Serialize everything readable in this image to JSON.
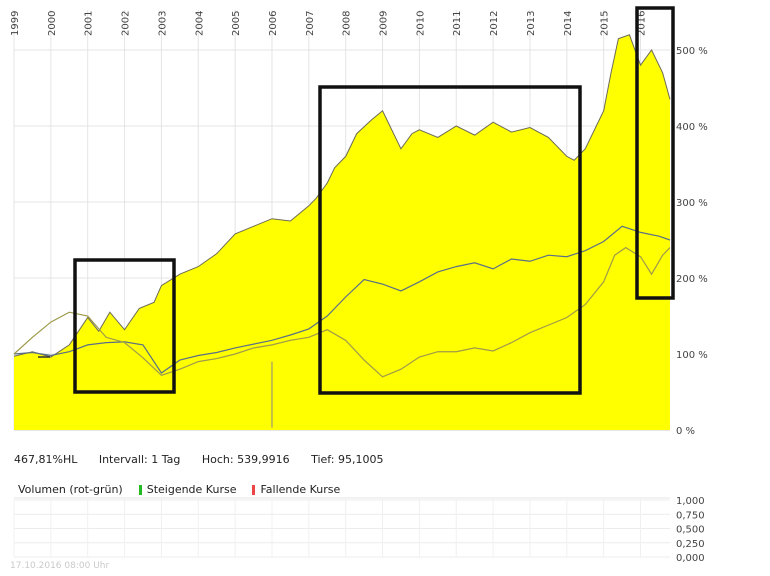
{
  "chart_data": {
    "type": "area",
    "x_ticks": [
      "1999",
      "2000",
      "2001",
      "2002",
      "2003",
      "2004",
      "2005",
      "2006",
      "2007",
      "2008",
      "2009",
      "2010",
      "2011",
      "2012",
      "2013",
      "2014",
      "2015",
      "2016"
    ],
    "y_ticks": [
      "0 %",
      "100 %",
      "200 %",
      "300 %",
      "400 %",
      "500 %"
    ],
    "ylim": [
      0,
      560
    ],
    "series": [
      {
        "role": "main-area",
        "color": "#ffff00",
        "x": [
          1999,
          1999.5,
          2000,
          2000.5,
          2001,
          2001.3,
          2001.6,
          2002,
          2002.4,
          2002.8,
          2003,
          2003.5,
          2004,
          2004.5,
          2005,
          2005.5,
          2006,
          2006.5,
          2007,
          2007.2,
          2007.5,
          2007.7,
          2008,
          2008.3,
          2008.7,
          2009,
          2009.2,
          2009.5,
          2009.8,
          2010,
          2010.5,
          2011,
          2011.5,
          2012,
          2012.5,
          2013,
          2013.5,
          2014,
          2014.2,
          2014.5,
          2015,
          2015.2,
          2015.4,
          2015.7,
          2016,
          2016.3,
          2016.6,
          2016.8
        ],
        "y": [
          97,
          103,
          96,
          112,
          148,
          130,
          155,
          132,
          160,
          168,
          190,
          205,
          215,
          232,
          258,
          268,
          278,
          275,
          295,
          305,
          325,
          345,
          360,
          390,
          408,
          420,
          400,
          370,
          390,
          395,
          385,
          400,
          388,
          405,
          392,
          398,
          385,
          360,
          355,
          370,
          420,
          470,
          515,
          520,
          480,
          500,
          470,
          435
        ]
      },
      {
        "role": "index-a",
        "color": "#5b6f86",
        "x": [
          1999,
          1999.5,
          2000,
          2000.5,
          2001,
          2001.5,
          2002,
          2002.5,
          2003,
          2003.5,
          2004,
          2004.5,
          2005,
          2005.5,
          2006,
          2006.5,
          2007,
          2007.5,
          2008,
          2008.5,
          2009,
          2009.5,
          2010,
          2010.5,
          2011,
          2011.5,
          2012,
          2012.5,
          2013,
          2013.5,
          2014,
          2014.5,
          2015,
          2015.5,
          2016,
          2016.5,
          2016.8
        ],
        "y": [
          100,
          102,
          98,
          103,
          112,
          115,
          116,
          112,
          75,
          92,
          98,
          102,
          108,
          113,
          118,
          125,
          133,
          150,
          175,
          198,
          192,
          183,
          195,
          208,
          215,
          220,
          212,
          225,
          222,
          230,
          228,
          236,
          248,
          268,
          260,
          255,
          250
        ]
      },
      {
        "role": "index-b",
        "color": "#9e9a4a",
        "x": [
          1999,
          1999.5,
          2000,
          2000.5,
          2001,
          2001.5,
          2002,
          2002.5,
          2003,
          2003.5,
          2004,
          2004.5,
          2005,
          2005.5,
          2006,
          2006.5,
          2007,
          2007.5,
          2008,
          2008.5,
          2009,
          2009.5,
          2010,
          2010.5,
          2011,
          2011.5,
          2012,
          2012.5,
          2013,
          2013.5,
          2014,
          2014.5,
          2015,
          2015.3,
          2015.6,
          2016,
          2016.3,
          2016.6,
          2016.8
        ],
        "y": [
          100,
          122,
          142,
          155,
          150,
          122,
          115,
          95,
          72,
          80,
          90,
          94,
          100,
          108,
          112,
          118,
          122,
          132,
          118,
          92,
          70,
          80,
          96,
          103,
          103,
          108,
          104,
          115,
          128,
          138,
          148,
          165,
          195,
          230,
          240,
          228,
          205,
          230,
          240
        ]
      }
    ],
    "dip": {
      "x": 2006.0,
      "y_from": 90,
      "y_to": 3
    }
  },
  "info": {
    "perf": "467,81%HL",
    "interval": "Intervall: 1 Tag",
    "high": "Hoch: 539,9916",
    "low": "Tief: 95,1005"
  },
  "volume": {
    "label": "Volumen (rot-grün)",
    "rising": "Steigende Kurse",
    "falling": "Fallende Kurse",
    "rising_color": "#22bb22",
    "falling_color": "#ee4444",
    "ticks": [
      "1,000",
      "0,750",
      "0,500",
      "0,250",
      "0,000"
    ]
  },
  "footer": "17.10.2016 08:00 Uhr"
}
